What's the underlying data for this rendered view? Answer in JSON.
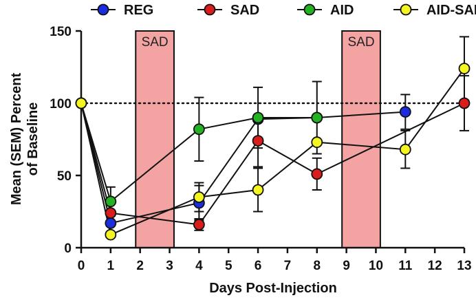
{
  "chart_data": {
    "type": "line",
    "title": "",
    "xlabel": "Days Post-Injection",
    "ylabel_line1": "Mean (SEM) Percent",
    "ylabel_line2": "of Baseline",
    "xlim": [
      0,
      13
    ],
    "ylim": [
      0,
      150
    ],
    "x_ticks": [
      0,
      1,
      2,
      3,
      4,
      5,
      6,
      7,
      8,
      9,
      10,
      11,
      12,
      13
    ],
    "x_tick_labels": [
      "0",
      "1",
      "2",
      "3",
      "4",
      "5",
      "6",
      "7",
      "8",
      "9",
      "10",
      "11",
      "12",
      "13"
    ],
    "y_ticks": [
      0,
      50,
      100,
      150
    ],
    "y_tick_labels": [
      "0",
      "50",
      "100",
      "150"
    ],
    "baseline": 100,
    "legend_position": "top",
    "shaded_regions": [
      {
        "label": "SAD",
        "x_start": 1.85,
        "x_end": 3.15,
        "color": "#f4a3a3"
      },
      {
        "label": "SAD",
        "x_start": 8.85,
        "x_end": 10.15,
        "color": "#f4a3a3"
      }
    ],
    "series": [
      {
        "name": "REG",
        "color": "#1a2ee0",
        "points": [
          {
            "x": 0,
            "y": 100,
            "err": 0
          },
          {
            "x": 1,
            "y": 17,
            "err": 8
          },
          {
            "x": 4,
            "y": 31,
            "err": 12
          },
          {
            "x": 6,
            "y": 89,
            "err": 0
          },
          {
            "x": 8,
            "y": 90,
            "err": 0
          },
          {
            "x": 11,
            "y": 94,
            "err": 12
          }
        ]
      },
      {
        "name": "SAD",
        "color": "#d91c1c",
        "points": [
          {
            "x": 0,
            "y": 100,
            "err": 0
          },
          {
            "x": 1,
            "y": 24,
            "err": 9
          },
          {
            "x": 4,
            "y": 16,
            "err": 4
          },
          {
            "x": 6,
            "y": 74,
            "err": 18
          },
          {
            "x": 8,
            "y": 51,
            "err": 11
          },
          {
            "x": 13,
            "y": 100,
            "err": 19
          }
        ]
      },
      {
        "name": "AID",
        "color": "#22b222",
        "points": [
          {
            "x": 0,
            "y": 100,
            "err": 0
          },
          {
            "x": 1,
            "y": 32,
            "err": 10
          },
          {
            "x": 4,
            "y": 82,
            "err": 22
          },
          {
            "x": 6,
            "y": 90,
            "err": 21
          },
          {
            "x": 8,
            "y": 90,
            "err": 25
          }
        ]
      },
      {
        "name": "AID-SAD",
        "color": "#f5f522",
        "points": [
          {
            "x": 0,
            "y": 100,
            "err": 0
          },
          {
            "x": 1,
            "y": 9,
            "err": 0
          },
          {
            "x": 4,
            "y": 35,
            "err": 10
          },
          {
            "x": 6,
            "y": 40,
            "err": 15
          },
          {
            "x": 8,
            "y": 73,
            "err": 0
          },
          {
            "x": 11,
            "y": 68,
            "err": 13
          },
          {
            "x": 13,
            "y": 124,
            "err": 22
          }
        ]
      }
    ]
  }
}
